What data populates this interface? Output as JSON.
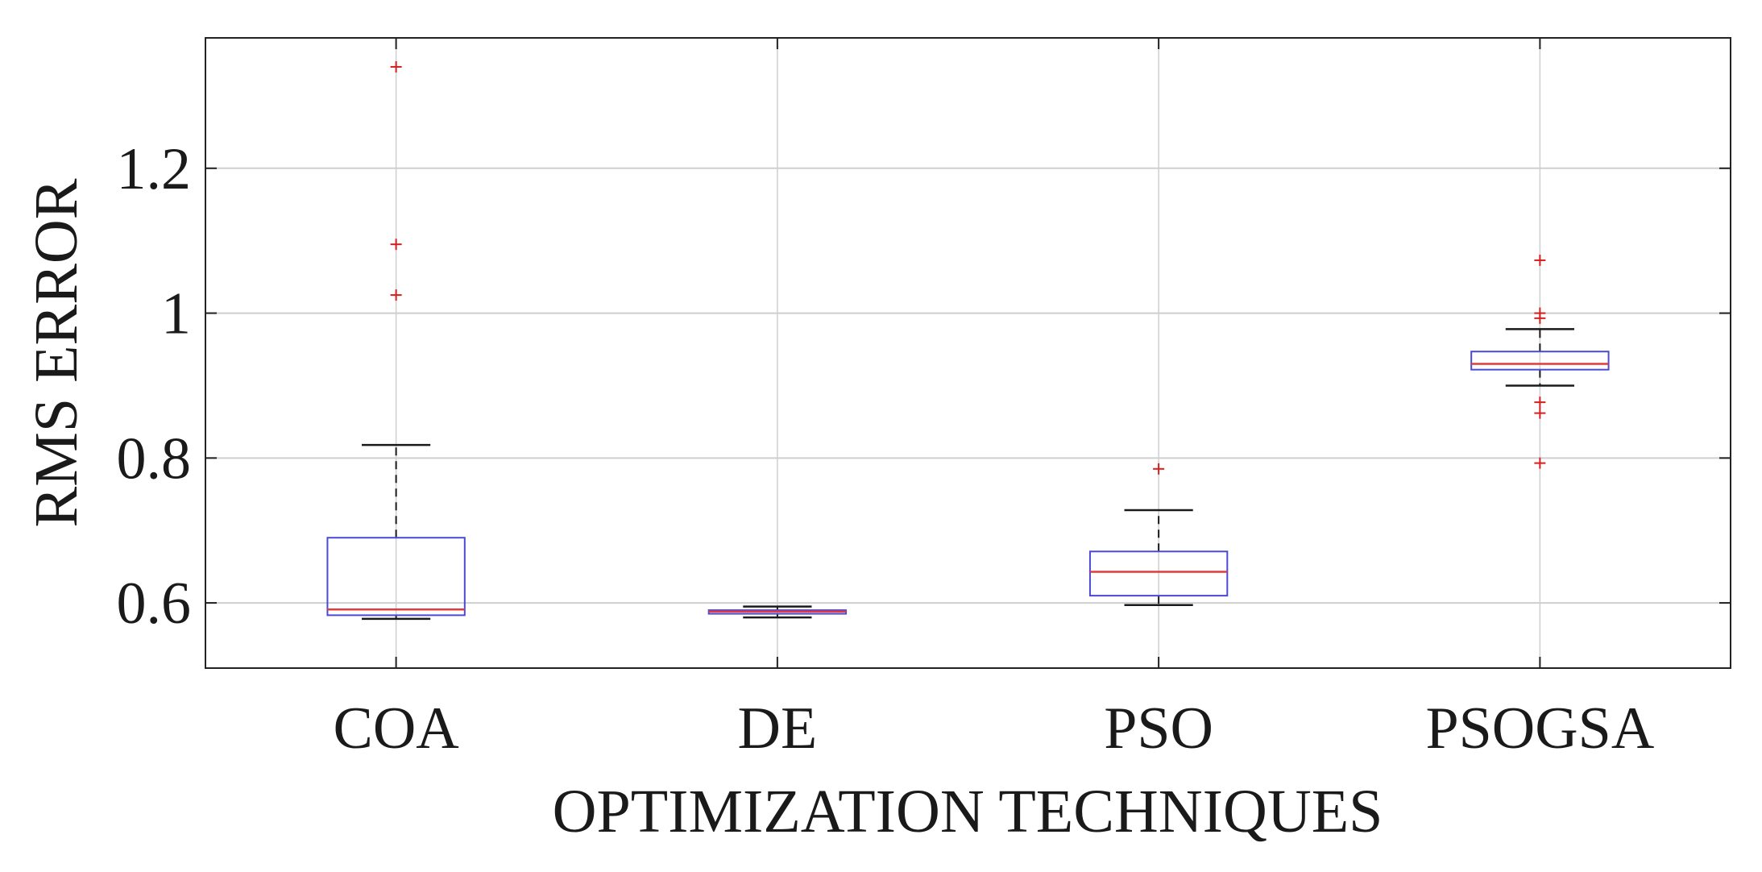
{
  "chart_data": {
    "type": "boxplot",
    "xlabel": "OPTIMIZATION TECHNIQUES",
    "ylabel": "RMS ERROR",
    "ylim": [
      0.51,
      1.38
    ],
    "yticks": [
      0.6,
      0.8,
      1.0,
      1.2
    ],
    "ytick_labels": [
      "0.6",
      "0.8",
      "1",
      "1.2"
    ],
    "grid": true,
    "categories": [
      "COA",
      "DE",
      "PSO",
      "PSOGSA"
    ],
    "boxes": [
      {
        "name": "COA",
        "whisker_low": 0.578,
        "q1": 0.583,
        "median": 0.591,
        "q3": 0.69,
        "whisker_high": 0.818,
        "outliers": [
          1.025,
          1.095,
          1.34
        ]
      },
      {
        "name": "DE",
        "whisker_low": 0.58,
        "q1": 0.585,
        "median": 0.588,
        "q3": 0.59,
        "whisker_high": 0.595,
        "outliers": []
      },
      {
        "name": "PSO",
        "whisker_low": 0.597,
        "q1": 0.61,
        "median": 0.643,
        "q3": 0.671,
        "whisker_high": 0.728,
        "outliers": [
          0.785
        ]
      },
      {
        "name": "PSOGSA",
        "whisker_low": 0.9,
        "q1": 0.922,
        "median": 0.93,
        "q3": 0.947,
        "whisker_high": 0.978,
        "outliers": [
          0.793,
          0.862,
          0.877,
          0.993,
          1.0,
          1.073
        ]
      }
    ],
    "colors": {
      "box": "#4a4ad6",
      "median": "#e23b3b",
      "outlier": "#d42020",
      "whisker": "#1a1a1a",
      "grid": "#cfcfcf",
      "axis": "#222222"
    }
  }
}
